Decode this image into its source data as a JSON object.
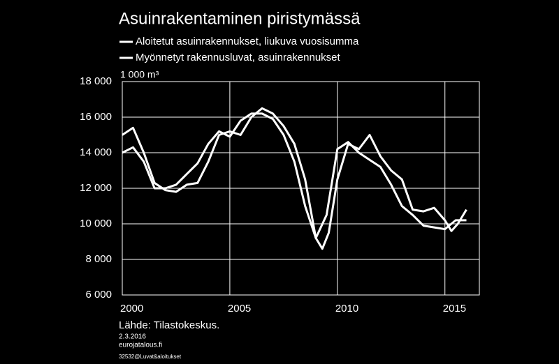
{
  "chart_data": {
    "type": "line",
    "title": "Asuinrakentaminen piristymässä",
    "y_label": "1 000 m³",
    "source": "Lähde: Tilastokeskus.",
    "date": "2.3.2016",
    "site": "eurojatalous.fi",
    "code": "32532@Luvat&aloitukset",
    "xlim": [
      2000,
      2016.6
    ],
    "xticks": [
      2000,
      2005,
      2010,
      2015
    ],
    "ylim": [
      6000,
      18000
    ],
    "yticks": [
      {
        "value": 6000,
        "label": "6 000"
      },
      {
        "value": 8000,
        "label": "8 000"
      },
      {
        "value": 10000,
        "label": "10 000"
      },
      {
        "value": 12000,
        "label": "12 000"
      },
      {
        "value": 14000,
        "label": "14 000"
      },
      {
        "value": 16000,
        "label": "16 000"
      },
      {
        "value": 18000,
        "label": "18 000"
      }
    ],
    "grid": true,
    "series": [
      {
        "name": "Aloitetut asuinrakennukset, liukuva vuosisumma",
        "color": "#ffffff",
        "x": [
          2000,
          2000.5,
          2001,
          2001.5,
          2002,
          2002.5,
          2003,
          2003.5,
          2004,
          2004.5,
          2005,
          2005.5,
          2006,
          2006.5,
          2007,
          2007.5,
          2008,
          2008.5,
          2009,
          2009.3,
          2009.6,
          2010,
          2010.5,
          2011,
          2011.5,
          2012,
          2012.5,
          2013,
          2013.5,
          2014,
          2014.5,
          2015,
          2015.3,
          2015.6,
          2016
        ],
        "values": [
          15000,
          15400,
          14000,
          12300,
          11900,
          11800,
          12200,
          12300,
          13500,
          15000,
          15200,
          15000,
          16000,
          16500,
          16200,
          15500,
          14500,
          12500,
          9200,
          8600,
          9500,
          12500,
          14500,
          14200,
          15000,
          13800,
          13000,
          12500,
          10800,
          10700,
          10900,
          10200,
          9600,
          10000,
          10800
        ]
      },
      {
        "name": "Myönnetyt rakennusluvat, asuinrakennukset",
        "color": "#ffffff",
        "x": [
          2000,
          2000.5,
          2001,
          2001.5,
          2002,
          2002.5,
          2003,
          2003.5,
          2004,
          2004.5,
          2005,
          2005.5,
          2006,
          2006.5,
          2007,
          2007.5,
          2008,
          2008.5,
          2009,
          2009.5,
          2010,
          2010.5,
          2011,
          2011.5,
          2012,
          2012.5,
          2013,
          2013.5,
          2014,
          2014.5,
          2015,
          2015.5,
          2016
        ],
        "values": [
          14000,
          14300,
          13500,
          12000,
          12000,
          12200,
          12800,
          13400,
          14500,
          15200,
          14900,
          15800,
          16200,
          16200,
          15900,
          15000,
          13500,
          11000,
          9200,
          10500,
          14200,
          14600,
          14000,
          13600,
          13200,
          12200,
          11000,
          10500,
          9900,
          9800,
          9700,
          10200,
          10200
        ]
      }
    ]
  }
}
